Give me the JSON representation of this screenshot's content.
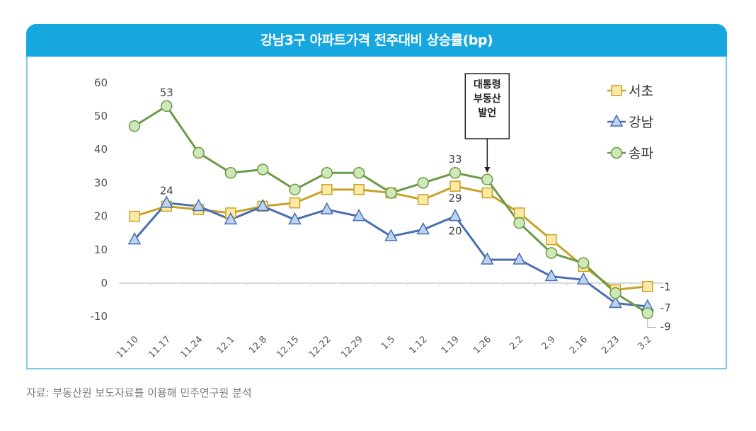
{
  "chart_data": {
    "type": "line",
    "title": "강남3구 아파트가격 전주대비 상승률(bp)",
    "xlabel": "",
    "ylabel": "",
    "ylim": [
      -10,
      60
    ],
    "yticks": [
      60,
      50,
      40,
      30,
      20,
      10,
      0,
      -10
    ],
    "categories": [
      "11.10",
      "11.17",
      "11.24",
      "12.1",
      "12.8",
      "12.15",
      "12.22",
      "12.29",
      "1.5",
      "1.12",
      "1.19",
      "1.26",
      "2.2",
      "2.9",
      "2.16",
      "2.23",
      "3.2"
    ],
    "series": [
      {
        "name": "서초",
        "color": "#c9a227",
        "fill": "#fbe9a6",
        "marker": "square",
        "values": [
          20,
          23,
          22,
          21,
          23,
          24,
          28,
          28,
          27,
          25,
          29,
          27,
          21,
          13,
          5,
          -2,
          -1
        ]
      },
      {
        "name": "강남",
        "color": "#4a6fb0",
        "fill": "#bcd4f2",
        "marker": "triangle",
        "values": [
          13,
          24,
          23,
          19,
          23,
          19,
          22,
          20,
          14,
          16,
          20,
          7,
          7,
          2,
          1,
          -6,
          -7
        ]
      },
      {
        "name": "송파",
        "color": "#6a9a4a",
        "fill": "#cfe8b8",
        "marker": "circle",
        "values": [
          47,
          53,
          39,
          33,
          34,
          28,
          33,
          33,
          27,
          30,
          33,
          31,
          18,
          9,
          6,
          -3,
          -9
        ]
      }
    ],
    "data_labels": [
      {
        "series": "송파",
        "category": "11.17",
        "text": "53"
      },
      {
        "series": "강남",
        "category": "11.17",
        "text": "24"
      },
      {
        "series": "송파",
        "category": "1.19",
        "text": "33"
      },
      {
        "series": "서초",
        "category": "1.19",
        "text": "29"
      },
      {
        "series": "강남",
        "category": "1.19",
        "text": "20"
      },
      {
        "series": "서초",
        "category": "3.2",
        "text": "-1"
      },
      {
        "series": "강남",
        "category": "3.2",
        "text": "-7"
      },
      {
        "series": "송파",
        "category": "3.2",
        "text": "-9"
      }
    ],
    "annotation": {
      "lines": [
        "대통령",
        "부동산",
        "발언"
      ],
      "category": "1.26"
    },
    "legend": "top-right",
    "grid": false
  },
  "source": "자료: 부동산원 보도자료를 이용해 민주연구원 분석"
}
